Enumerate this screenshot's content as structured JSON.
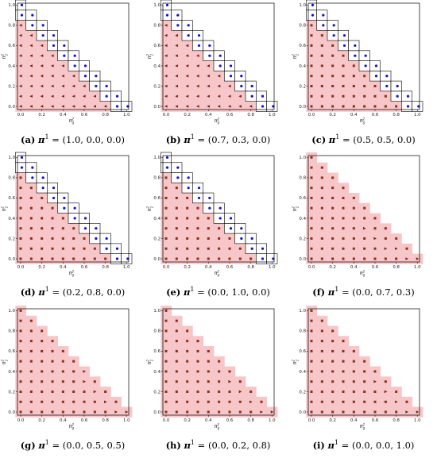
{
  "chart_data": [
    {
      "type": "scatter",
      "label": "(a)",
      "pi_symbol": "π",
      "pi_sup": "1",
      "pi_value": "(1.0, 0.0, 0.0)",
      "xlabel": "π",
      "xlabel_sub": "0",
      "xlabel_sup": "2",
      "ylabel": "π",
      "ylabel_sub": "1",
      "ylabel_sup": "2",
      "xticks": [
        "0.0",
        "0.2",
        "0.4",
        "0.6",
        "0.8",
        "1.0"
      ],
      "yticks": [
        "0.0",
        "0.2",
        "0.4",
        "0.6",
        "0.8",
        "1.0"
      ],
      "xlim": [
        0,
        1
      ],
      "ylim": [
        0,
        1
      ],
      "grid_step": 0.1,
      "dot_side": "right",
      "region_shape": [
        [
          0,
          0.85
        ],
        [
          0.15,
          0.85
        ],
        [
          0.85,
          0.15
        ],
        [
          0.85,
          0
        ]
      ],
      "circle_cells": [
        [
          0,
          1.0
        ],
        [
          0,
          0.9
        ],
        [
          0.1,
          0.9
        ],
        [
          0.1,
          0.8
        ],
        [
          0.2,
          0.8
        ],
        [
          0.2,
          0.7
        ],
        [
          0.3,
          0.7
        ],
        [
          0.3,
          0.6
        ],
        [
          0.4,
          0.6
        ],
        [
          0.4,
          0.5
        ],
        [
          0.5,
          0.5
        ],
        [
          0.5,
          0.4
        ],
        [
          0.6,
          0.4
        ],
        [
          0.6,
          0.3
        ],
        [
          0.7,
          0.3
        ],
        [
          0.7,
          0.2
        ],
        [
          0.8,
          0.2
        ],
        [
          0.8,
          0.1
        ],
        [
          0.9,
          0.1
        ],
        [
          0.9,
          0.0
        ],
        [
          1.0,
          0.0
        ]
      ],
      "interior_marker": "triangle-left"
    },
    {
      "type": "scatter",
      "label": "(b)",
      "pi_symbol": "π",
      "pi_sup": "1",
      "pi_value": "(0.7, 0.3, 0.0)",
      "xlabel": "π",
      "xlabel_sub": "0",
      "xlabel_sup": "2",
      "ylabel": "π",
      "ylabel_sub": "1",
      "ylabel_sup": "2",
      "xticks": [
        "0.0",
        "0.2",
        "0.4",
        "0.6",
        "0.8",
        "1.0"
      ],
      "yticks": [
        "0.0",
        "0.2",
        "0.4",
        "0.6",
        "0.8",
        "1.0"
      ],
      "xlim": [
        0,
        1
      ],
      "ylim": [
        0,
        1
      ],
      "grid_step": 0.1,
      "dot_side": "right",
      "region_shape": [
        [
          0,
          0.85
        ],
        [
          0.15,
          0.85
        ],
        [
          0.85,
          0.15
        ],
        [
          0.85,
          0
        ]
      ],
      "circle_cells": [
        [
          0,
          1.0
        ],
        [
          0,
          0.9
        ],
        [
          0.1,
          0.9
        ],
        [
          0.1,
          0.8
        ],
        [
          0.2,
          0.8
        ],
        [
          0.2,
          0.7
        ],
        [
          0.3,
          0.7
        ],
        [
          0.3,
          0.6
        ],
        [
          0.4,
          0.6
        ],
        [
          0.4,
          0.5
        ],
        [
          0.5,
          0.5
        ],
        [
          0.5,
          0.4
        ],
        [
          0.6,
          0.4
        ],
        [
          0.6,
          0.3
        ],
        [
          0.7,
          0.3
        ],
        [
          0.7,
          0.2
        ],
        [
          0.8,
          0.2
        ],
        [
          0.8,
          0.1
        ],
        [
          0.9,
          0.1
        ],
        [
          0.9,
          0.0
        ],
        [
          1.0,
          0.0
        ]
      ],
      "interior_marker": "triangle-left"
    },
    {
      "type": "scatter",
      "label": "(c)",
      "pi_symbol": "π",
      "pi_sup": "1",
      "pi_value": "(0.5, 0.5, 0.0)",
      "xlabel": "π",
      "xlabel_sub": "0",
      "xlabel_sup": "2",
      "ylabel": "π",
      "ylabel_sub": "1",
      "ylabel_sup": "2",
      "xticks": [
        "0.0",
        "0.2",
        "0.4",
        "0.6",
        "0.8",
        "1.0"
      ],
      "yticks": [
        "0.0",
        "0.2",
        "0.4",
        "0.6",
        "0.8",
        "1.0"
      ],
      "xlim": [
        0,
        1
      ],
      "ylim": [
        0,
        1
      ],
      "grid_step": 0.1,
      "dot_side": "right",
      "region_shape": [
        [
          0,
          0.85
        ],
        [
          0.15,
          0.85
        ],
        [
          0.85,
          0.15
        ],
        [
          0.85,
          0
        ]
      ],
      "circle_cells": [
        [
          0,
          1.0
        ],
        [
          0,
          0.9
        ],
        [
          0.1,
          0.9
        ],
        [
          0.1,
          0.8
        ],
        [
          0.2,
          0.8
        ],
        [
          0.2,
          0.7
        ],
        [
          0.3,
          0.7
        ],
        [
          0.3,
          0.6
        ],
        [
          0.4,
          0.6
        ],
        [
          0.4,
          0.5
        ],
        [
          0.5,
          0.5
        ],
        [
          0.5,
          0.4
        ],
        [
          0.6,
          0.4
        ],
        [
          0.6,
          0.3
        ],
        [
          0.7,
          0.3
        ],
        [
          0.7,
          0.2
        ],
        [
          0.8,
          0.2
        ],
        [
          0.8,
          0.1
        ],
        [
          0.9,
          0.1
        ],
        [
          0.9,
          0.0
        ],
        [
          1.0,
          0.0
        ]
      ],
      "interior_marker": "square"
    },
    {
      "type": "scatter",
      "label": "(d)",
      "pi_symbol": "π",
      "pi_sup": "1",
      "pi_value": "(0.2, 0.8, 0.0)",
      "xlabel": "π",
      "xlabel_sub": "0",
      "xlabel_sup": "2",
      "ylabel": "π",
      "ylabel_sub": "1",
      "ylabel_sup": "2",
      "xticks": [
        "0.0",
        "0.2",
        "0.4",
        "0.6",
        "0.8",
        "1.0"
      ],
      "yticks": [
        "0.0",
        "0.2",
        "0.4",
        "0.6",
        "0.8",
        "1.0"
      ],
      "xlim": [
        0,
        1
      ],
      "ylim": [
        0,
        1
      ],
      "grid_step": 0.1,
      "dot_side": "right",
      "region_shape": [
        [
          0,
          0.85
        ],
        [
          0.15,
          0.85
        ],
        [
          0.85,
          0.15
        ],
        [
          0.85,
          0
        ]
      ],
      "circle_cells": [
        [
          0,
          1.0
        ],
        [
          0,
          0.9
        ],
        [
          0.1,
          0.9
        ],
        [
          0.1,
          0.8
        ],
        [
          0.2,
          0.8
        ],
        [
          0.2,
          0.7
        ],
        [
          0.3,
          0.7
        ],
        [
          0.3,
          0.6
        ],
        [
          0.4,
          0.6
        ],
        [
          0.4,
          0.5
        ],
        [
          0.5,
          0.5
        ],
        [
          0.5,
          0.4
        ],
        [
          0.6,
          0.4
        ],
        [
          0.6,
          0.3
        ],
        [
          0.7,
          0.3
        ],
        [
          0.7,
          0.2
        ],
        [
          0.8,
          0.2
        ],
        [
          0.8,
          0.1
        ],
        [
          0.9,
          0.1
        ],
        [
          0.9,
          0.0
        ],
        [
          1.0,
          0.0
        ]
      ],
      "interior_marker": "square"
    },
    {
      "type": "scatter",
      "label": "(e)",
      "pi_symbol": "π",
      "pi_sup": "1",
      "pi_value": "(0.0, 1.0, 0.0)",
      "xlabel": "π",
      "xlabel_sub": "0",
      "xlabel_sup": "2",
      "ylabel": "π",
      "ylabel_sub": "1",
      "ylabel_sup": "2",
      "xticks": [
        "0.0",
        "0.2",
        "0.4",
        "0.6",
        "0.8",
        "1.0"
      ],
      "yticks": [
        "0.0",
        "0.2",
        "0.4",
        "0.6",
        "0.8",
        "1.0"
      ],
      "xlim": [
        0,
        1
      ],
      "ylim": [
        0,
        1
      ],
      "grid_step": 0.1,
      "dot_side": "right",
      "region_shape": [
        [
          0,
          0.85
        ],
        [
          0.15,
          0.85
        ],
        [
          0.85,
          0.15
        ],
        [
          0.85,
          0
        ]
      ],
      "circle_cells": [
        [
          0,
          1.0
        ],
        [
          0,
          0.9
        ],
        [
          0.1,
          0.9
        ],
        [
          0.1,
          0.8
        ],
        [
          0.2,
          0.8
        ],
        [
          0.2,
          0.7
        ],
        [
          0.3,
          0.7
        ],
        [
          0.3,
          0.6
        ],
        [
          0.4,
          0.6
        ],
        [
          0.4,
          0.5
        ],
        [
          0.5,
          0.5
        ],
        [
          0.5,
          0.4
        ],
        [
          0.6,
          0.4
        ],
        [
          0.6,
          0.3
        ],
        [
          0.7,
          0.3
        ],
        [
          0.7,
          0.2
        ],
        [
          0.8,
          0.2
        ],
        [
          0.8,
          0.1
        ],
        [
          0.9,
          0.1
        ],
        [
          0.9,
          0.0
        ],
        [
          1.0,
          0.0
        ]
      ],
      "interior_marker": "square"
    },
    {
      "type": "scatter",
      "label": "(f)",
      "pi_symbol": "π",
      "pi_sup": "1",
      "pi_value": "(0.0, 0.7, 0.3)",
      "xlabel": "π",
      "xlabel_sub": "0",
      "xlabel_sup": "2",
      "ylabel": "π",
      "ylabel_sub": "1",
      "ylabel_sup": "2",
      "xticks": [
        "0.0",
        "0.2",
        "0.4",
        "0.6",
        "0.8",
        "1.0"
      ],
      "yticks": [
        "0.0",
        "0.2",
        "0.4",
        "0.6",
        "0.8",
        "1.0"
      ],
      "xlim": [
        0,
        1
      ],
      "ylim": [
        0,
        1
      ],
      "grid_step": 0.1,
      "dot_side": "right",
      "region_shape": "full",
      "circle_cells": [],
      "interior_marker": "square",
      "right_marker_cells": [
        [
          0.5,
          0.3
        ],
        [
          0.6,
          0.2
        ],
        [
          0.7,
          0.1
        ],
        [
          0.8,
          0.1
        ],
        [
          0.9,
          0.0
        ],
        [
          1.0,
          0.0
        ]
      ]
    },
    {
      "type": "scatter",
      "label": "(g)",
      "pi_symbol": "π",
      "pi_sup": "1",
      "pi_value": "(0.0, 0.5, 0.5)",
      "xlabel": "π",
      "xlabel_sub": "0",
      "xlabel_sup": "2",
      "ylabel": "π",
      "ylabel_sub": "1",
      "ylabel_sup": "2",
      "xticks": [
        "0.0",
        "0.2",
        "0.4",
        "0.6",
        "0.8",
        "1.0"
      ],
      "yticks": [
        "0.0",
        "0.2",
        "0.4",
        "0.6",
        "0.8",
        "1.0"
      ],
      "xlim": [
        0,
        1
      ],
      "ylim": [
        0,
        1
      ],
      "grid_step": 0.1,
      "dot_side": "right",
      "region_shape": "full",
      "circle_cells": [],
      "interior_marker": "square",
      "right_marker_cells": [
        [
          0.6,
          0.4
        ],
        [
          0.6,
          0.3
        ],
        [
          0.7,
          0.2
        ],
        [
          0.8,
          0.1
        ],
        [
          0.9,
          0.0
        ],
        [
          1.0,
          0.0
        ]
      ]
    },
    {
      "type": "scatter",
      "label": "(h)",
      "pi_symbol": "π",
      "pi_sup": "1",
      "pi_value": "(0.0, 0.2, 0.8)",
      "xlabel": "π",
      "xlabel_sub": "0",
      "xlabel_sup": "2",
      "ylabel": "π",
      "ylabel_sub": "1",
      "ylabel_sup": "2",
      "xticks": [
        "0.0",
        "0.2",
        "0.4",
        "0.6",
        "0.8",
        "1.0"
      ],
      "yticks": [
        "0.0",
        "0.2",
        "0.4",
        "0.6",
        "0.8",
        "1.0"
      ],
      "xlim": [
        0,
        1
      ],
      "ylim": [
        0,
        1
      ],
      "grid_step": 0.1,
      "dot_side": "right",
      "region_shape": "full",
      "circle_cells": [],
      "interior_marker": "square",
      "right_marker_cells": [
        [
          0.6,
          0.3
        ],
        [
          0.7,
          0.2
        ],
        [
          0.8,
          0.1
        ],
        [
          0.9,
          0.0
        ],
        [
          1.0,
          0.0
        ]
      ]
    },
    {
      "type": "scatter",
      "label": "(i)",
      "pi_symbol": "π",
      "pi_sup": "1",
      "pi_value": "(0.0, 0.0, 1.0)",
      "xlabel": "π",
      "xlabel_sub": "0",
      "xlabel_sup": "2",
      "ylabel": "π",
      "ylabel_sub": "1",
      "ylabel_sup": "2",
      "xticks": [
        "0.0",
        "0.2",
        "0.4",
        "0.6",
        "0.8",
        "1.0"
      ],
      "yticks": [
        "0.0",
        "0.2",
        "0.4",
        "0.6",
        "0.8",
        "1.0"
      ],
      "xlim": [
        0,
        1
      ],
      "ylim": [
        0,
        1
      ],
      "grid_step": 0.1,
      "dot_side": "right",
      "region_shape": "full",
      "circle_cells": [],
      "interior_marker": "square",
      "right_marker_cells": [
        [
          0.6,
          0.3
        ],
        [
          0.7,
          0.2
        ],
        [
          0.8,
          0.1
        ],
        [
          0.9,
          0.0
        ],
        [
          1.0,
          0.0
        ]
      ]
    }
  ],
  "colors": {
    "region_fill": "#f7c6c8",
    "square_marker": "#8b2e16",
    "triangle_marker": "#7a1f0f",
    "circle_marker": "#1010d6",
    "axis": "#000000"
  }
}
